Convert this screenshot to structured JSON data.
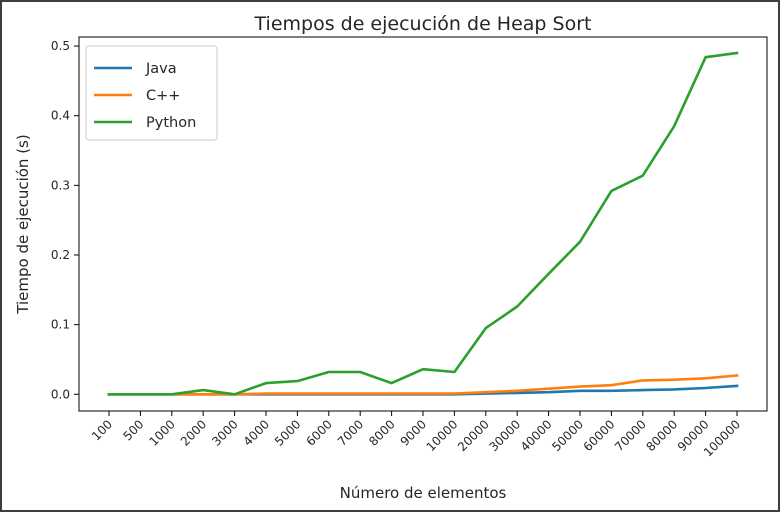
{
  "chart_data": {
    "type": "line",
    "title": "Tiempos de ejecución de Heap Sort",
    "xlabel": "Número de elementos",
    "ylabel": "Tiempo de ejecución (s)",
    "categories": [
      "100",
      "500",
      "1000",
      "2000",
      "3000",
      "4000",
      "5000",
      "6000",
      "7000",
      "8000",
      "9000",
      "10000",
      "20000",
      "30000",
      "40000",
      "50000",
      "60000",
      "70000",
      "80000",
      "90000",
      "100000"
    ],
    "yticks": [
      "0.0",
      "0.1",
      "0.2",
      "0.3",
      "0.4",
      "0.5"
    ],
    "ylim": [
      -0.024,
      0.513
    ],
    "grid": false,
    "legend_position": "upper left",
    "series": [
      {
        "name": "Java",
        "color": "#1f77b4",
        "values": [
          0.0,
          0.0,
          0.0,
          0.0,
          0.0,
          0.0,
          0.0,
          0.0,
          0.0,
          0.0,
          0.0,
          0.0,
          0.001,
          0.002,
          0.003,
          0.005,
          0.005,
          0.006,
          0.007,
          0.009,
          0.012
        ]
      },
      {
        "name": "C++",
        "color": "#ff7f0e",
        "values": [
          0.0,
          0.0,
          0.0,
          0.0,
          0.0,
          0.001,
          0.001,
          0.001,
          0.001,
          0.001,
          0.001,
          0.001,
          0.003,
          0.005,
          0.008,
          0.011,
          0.013,
          0.02,
          0.021,
          0.023,
          0.027
        ]
      },
      {
        "name": "Python",
        "color": "#2ca02c",
        "values": [
          0.0,
          0.0,
          0.0,
          0.006,
          0.0,
          0.016,
          0.019,
          0.032,
          0.032,
          0.016,
          0.036,
          0.032,
          0.095,
          0.126,
          0.173,
          0.219,
          0.292,
          0.314,
          0.385,
          0.484,
          0.49
        ]
      }
    ]
  }
}
